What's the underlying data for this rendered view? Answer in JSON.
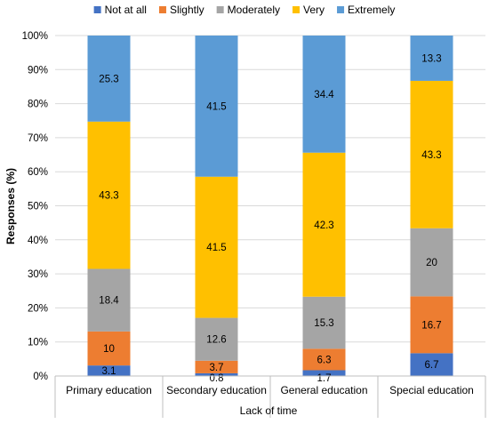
{
  "chart_data": {
    "type": "bar",
    "stacked": true,
    "percent_stacked": true,
    "xlabel": "Lack of time",
    "ylabel": "Responses (%)",
    "categories": [
      "Primary education",
      "Secondary education",
      "General education",
      "Special education"
    ],
    "yticks": [
      "0%",
      "10%",
      "20%",
      "30%",
      "40%",
      "50%",
      "60%",
      "70%",
      "80%",
      "90%",
      "100%"
    ],
    "ylim": [
      0,
      100
    ],
    "legend_position": "top",
    "grid": true,
    "series": [
      {
        "name": "Not at all",
        "color": "#4472C4",
        "values": [
          3.1,
          0.8,
          1.7,
          6.7
        ],
        "labels": [
          "3.1",
          "0.8",
          "1.7",
          "6.7"
        ]
      },
      {
        "name": "Slightly",
        "color": "#ED7D31",
        "values": [
          10,
          3.7,
          6.3,
          16.7
        ],
        "labels": [
          "10",
          "3.7",
          "6.3",
          "16.7"
        ]
      },
      {
        "name": "Moderately",
        "color": "#A5A5A5",
        "values": [
          18.4,
          12.6,
          15.3,
          20
        ],
        "labels": [
          "18.4",
          "12.6",
          "15.3",
          "20"
        ]
      },
      {
        "name": "Very",
        "color": "#FFC000",
        "values": [
          43.3,
          41.5,
          42.3,
          43.3
        ],
        "labels": [
          "43.3",
          "41.5",
          "42.3",
          "43.3"
        ]
      },
      {
        "name": "Extremely",
        "color": "#5B9BD5",
        "values": [
          25.3,
          41.5,
          34.4,
          13.3
        ],
        "labels": [
          "25.3",
          "41.5",
          "34.4",
          "13.3"
        ]
      }
    ]
  }
}
